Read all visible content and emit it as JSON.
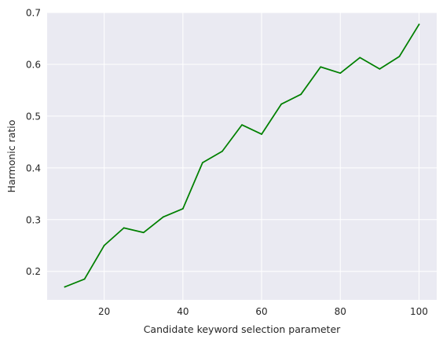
{
  "chart_data": {
    "type": "line",
    "title": "",
    "xlabel": "Candidate keyword selection parameter",
    "ylabel": "Harmonic ratio",
    "xlim": [
      5.5,
      104.5
    ],
    "ylim": [
      0.145,
      0.7
    ],
    "xticks": [
      20,
      40,
      60,
      80,
      100
    ],
    "yticks": [
      0.2,
      0.3,
      0.4,
      0.5,
      0.6,
      0.7
    ],
    "xtick_labels": [
      "20",
      "40",
      "60",
      "80",
      "100"
    ],
    "ytick_labels": [
      "0.2",
      "0.3",
      "0.4",
      "0.5",
      "0.6",
      "0.7"
    ],
    "grid": true,
    "background": "#eaeaf2",
    "grid_color": "#ffffff",
    "series": [
      {
        "color": "#008000",
        "x": [
          10,
          15,
          20,
          25,
          30,
          35,
          40,
          45,
          50,
          55,
          60,
          65,
          70,
          75,
          80,
          85,
          90,
          95,
          100
        ],
        "y": [
          0.17,
          0.185,
          0.25,
          0.284,
          0.275,
          0.305,
          0.321,
          0.41,
          0.432,
          0.483,
          0.465,
          0.523,
          0.542,
          0.595,
          0.583,
          0.613,
          0.591,
          0.615,
          0.677
        ]
      }
    ]
  }
}
